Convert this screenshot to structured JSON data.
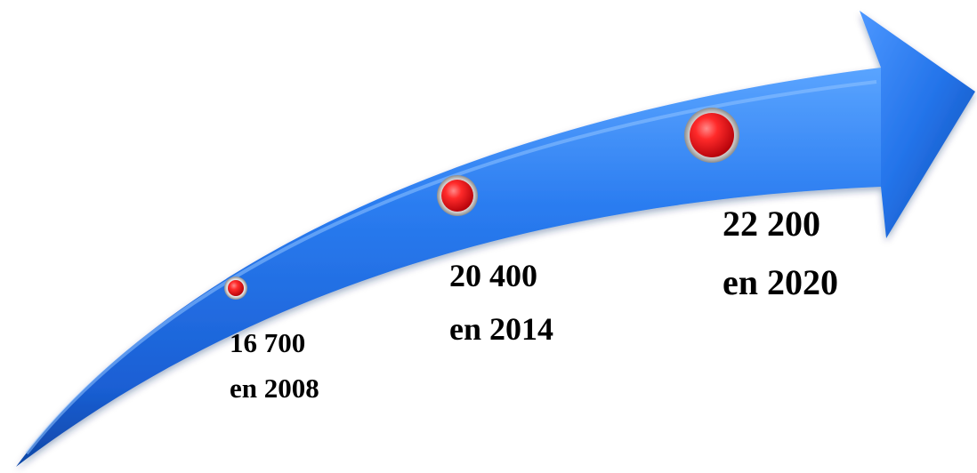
{
  "colors": {
    "arrow_main": "#1f6fe6",
    "arrow_light": "#4f9bff",
    "arrow_dark": "#0d44a8",
    "marker_red": "#e8141b",
    "marker_ring": "#c9c9c9"
  },
  "milestones": [
    {
      "value": "16 700",
      "period": "en 2008",
      "marker_size": "small"
    },
    {
      "value": "20 400",
      "period": "en 2014",
      "marker_size": "medium"
    },
    {
      "value": "22 200",
      "period": "en 2020",
      "marker_size": "large"
    }
  ]
}
